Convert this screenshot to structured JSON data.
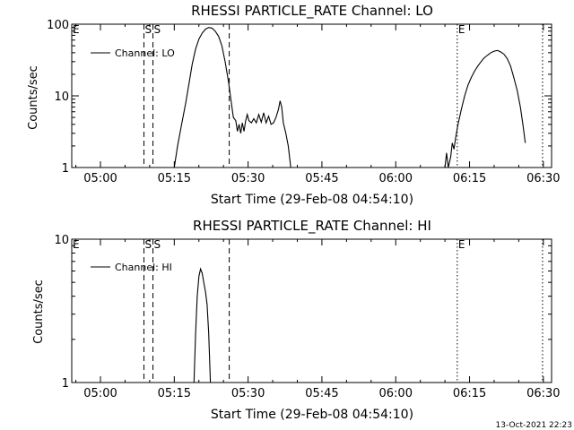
{
  "chart_data": [
    {
      "type": "line",
      "title": "RHESSI PARTICLE_RATE Channel: LO",
      "xlabel": "Start Time (29-Feb-08 04:54:10)",
      "ylabel": "Counts/sec",
      "yscale": "log",
      "ylim": [
        1,
        100
      ],
      "xlim": [
        "04:54:10",
        "06:31:40"
      ],
      "xticks": [
        "05:00",
        "05:15",
        "05:30",
        "05:45",
        "06:00",
        "06:15",
        "06:30"
      ],
      "yticks": [
        "1",
        "10",
        "100"
      ],
      "legend": {
        "placement": "top-left",
        "entries": [
          "Channel: LO"
        ]
      },
      "markers": [
        {
          "time": "04:54:10",
          "label": "E",
          "style": "none"
        },
        {
          "time": "05:08:50",
          "label": "S",
          "style": "dashed"
        },
        {
          "time": "05:10:40",
          "label": "S",
          "style": "dashed"
        },
        {
          "time": "05:26:10",
          "label": "",
          "style": "dashed"
        },
        {
          "time": "06:12:30",
          "label": "E",
          "style": "dotted"
        },
        {
          "time": "06:29:50",
          "label": "",
          "style": "dotted"
        }
      ],
      "series": [
        {
          "name": "Channel: LO",
          "segments": [
            [
              [
                "05:15:00",
                1
              ],
              [
                "05:15:40",
                2
              ],
              [
                "05:16:30",
                4
              ],
              [
                "05:17:20",
                8
              ],
              [
                "05:18:00",
                15
              ],
              [
                "05:18:40",
                28
              ],
              [
                "05:19:20",
                45
              ],
              [
                "05:20:00",
                62
              ],
              [
                "05:20:40",
                75
              ],
              [
                "05:21:20",
                85
              ],
              [
                "05:22:00",
                90
              ],
              [
                "05:22:40",
                88
              ],
              [
                "05:23:20",
                80
              ],
              [
                "05:24:00",
                68
              ],
              [
                "05:24:40",
                50
              ],
              [
                "05:25:20",
                30
              ],
              [
                "05:26:00",
                16
              ],
              [
                "05:26:30",
                9
              ],
              [
                "05:27:00",
                5
              ],
              [
                "05:27:30",
                4.5
              ],
              [
                "05:27:50",
                3.2
              ],
              [
                "05:28:10",
                4
              ],
              [
                "05:28:30",
                3.0
              ],
              [
                "05:28:50",
                4.2
              ],
              [
                "05:29:10",
                3.2
              ],
              [
                "05:29:30",
                4.5
              ],
              [
                "05:29:50",
                5.5
              ],
              [
                "05:30:10",
                4.5
              ],
              [
                "05:30:40",
                4.2
              ],
              [
                "05:31:10",
                4.8
              ],
              [
                "05:31:40",
                4.2
              ],
              [
                "05:32:10",
                5.5
              ],
              [
                "05:32:40",
                4.3
              ],
              [
                "05:33:10",
                5.8
              ],
              [
                "05:33:40",
                4.2
              ],
              [
                "05:34:10",
                5.2
              ],
              [
                "05:34:40",
                4.0
              ],
              [
                "05:35:10",
                4.2
              ],
              [
                "05:35:40",
                5.0
              ],
              [
                "05:36:10",
                6.5
              ],
              [
                "05:36:30",
                8.5
              ],
              [
                "05:36:50",
                7.0
              ],
              [
                "05:37:10",
                4.2
              ],
              [
                "05:37:40",
                3.0
              ],
              [
                "05:38:10",
                2.0
              ],
              [
                "05:38:40",
                1
              ]
            ],
            [
              [
                "06:10:00",
                1
              ],
              [
                "06:10:20",
                1.6
              ],
              [
                "06:10:40",
                1
              ],
              [
                "06:11:10",
                1.4
              ],
              [
                "06:11:30",
                2.2
              ],
              [
                "06:11:50",
                1.8
              ],
              [
                "06:12:10",
                2.6
              ],
              [
                "06:12:40",
                4.0
              ],
              [
                "06:13:20",
                6.5
              ],
              [
                "06:14:00",
                10
              ],
              [
                "06:14:40",
                14
              ],
              [
                "06:15:20",
                18
              ],
              [
                "06:16:00",
                22
              ],
              [
                "06:16:40",
                26
              ],
              [
                "06:17:20",
                30
              ],
              [
                "06:18:00",
                34
              ],
              [
                "06:18:40",
                37
              ],
              [
                "06:19:20",
                40
              ],
              [
                "06:20:00",
                42
              ],
              [
                "06:20:40",
                43
              ],
              [
                "06:21:20",
                41
              ],
              [
                "06:22:00",
                38
              ],
              [
                "06:22:40",
                33
              ],
              [
                "06:23:20",
                26
              ],
              [
                "06:24:00",
                18
              ],
              [
                "06:24:40",
                12
              ],
              [
                "06:25:20",
                7
              ],
              [
                "06:25:50",
                4
              ],
              [
                "06:26:20",
                2.2
              ]
            ]
          ]
        }
      ]
    },
    {
      "type": "line",
      "title": "RHESSI PARTICLE_RATE Channel: HI",
      "xlabel": "Start Time (29-Feb-08 04:54:10)",
      "ylabel": "Counts/sec",
      "yscale": "log",
      "ylim": [
        1,
        10
      ],
      "xlim": [
        "04:54:10",
        "06:31:40"
      ],
      "xticks": [
        "05:00",
        "05:15",
        "05:30",
        "05:45",
        "06:00",
        "06:15",
        "06:30"
      ],
      "yticks": [
        "1",
        "10"
      ],
      "legend": {
        "placement": "top-left",
        "entries": [
          "Channel: HI"
        ]
      },
      "markers": [
        {
          "time": "04:54:10",
          "label": "E",
          "style": "none"
        },
        {
          "time": "05:08:50",
          "label": "S",
          "style": "dashed"
        },
        {
          "time": "05:10:40",
          "label": "S",
          "style": "dashed"
        },
        {
          "time": "05:26:10",
          "label": "",
          "style": "dashed"
        },
        {
          "time": "06:12:30",
          "label": "E",
          "style": "dotted"
        },
        {
          "time": "06:29:50",
          "label": "",
          "style": "dotted"
        }
      ],
      "series": [
        {
          "name": "Channel: HI",
          "segments": [
            [
              [
                "05:19:00",
                1
              ],
              [
                "05:19:20",
                2.2
              ],
              [
                "05:19:40",
                4.0
              ],
              [
                "05:20:00",
                5.5
              ],
              [
                "05:20:20",
                6.2
              ],
              [
                "05:20:40",
                5.8
              ],
              [
                "05:21:00",
                5.0
              ],
              [
                "05:21:20",
                4.3
              ],
              [
                "05:21:40",
                3.5
              ],
              [
                "05:22:00",
                2.2
              ],
              [
                "05:22:20",
                1
              ]
            ]
          ]
        }
      ]
    }
  ],
  "footer": {
    "timestamp": "13-Oct-2021 22:23"
  }
}
